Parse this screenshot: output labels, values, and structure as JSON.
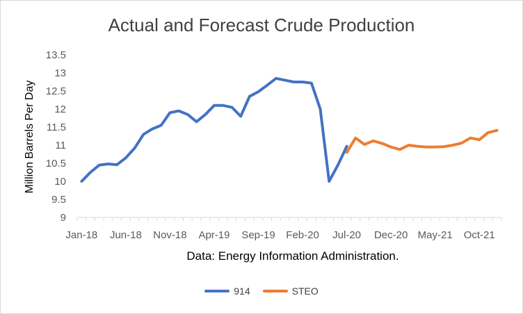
{
  "chart_data": {
    "type": "line",
    "title": "Actual and Forecast Crude Production",
    "ylabel": "Million Barrels Per Day",
    "xlabel": "Data: Energy Information Administration.",
    "ylim": [
      9,
      13.5
    ],
    "yticks": [
      "9",
      "9.5",
      "10",
      "10.5",
      "11",
      "11.5",
      "12",
      "12.5",
      "13",
      "13.5"
    ],
    "xticks": [
      "Jan-18",
      "Jun-18",
      "Nov-18",
      "Apr-19",
      "Sep-19",
      "Feb-20",
      "Jul-20",
      "Dec-20",
      "May-21",
      "Oct-21"
    ],
    "grid": false,
    "legend_position": "bottom",
    "series": [
      {
        "name": "914",
        "color": "#4472C4",
        "x": [
          "Jan-18",
          "Feb-18",
          "Mar-18",
          "Apr-18",
          "May-18",
          "Jun-18",
          "Jul-18",
          "Aug-18",
          "Sep-18",
          "Oct-18",
          "Nov-18",
          "Dec-18",
          "Jan-19",
          "Feb-19",
          "Mar-19",
          "Apr-19",
          "May-19",
          "Jun-19",
          "Jul-19",
          "Aug-19",
          "Sep-19",
          "Oct-19",
          "Nov-19",
          "Dec-19",
          "Jan-20",
          "Feb-20",
          "Mar-20",
          "Apr-20",
          "May-20",
          "Jun-20",
          "Jul-20"
        ],
        "values": [
          10.0,
          10.25,
          10.45,
          10.48,
          10.46,
          10.65,
          10.92,
          11.3,
          11.45,
          11.55,
          11.9,
          11.95,
          11.85,
          11.65,
          11.85,
          12.1,
          12.1,
          12.05,
          11.8,
          12.35,
          12.48,
          12.66,
          12.85,
          12.8,
          12.75,
          12.75,
          12.72,
          12.0,
          10.0,
          10.45,
          10.97
        ]
      },
      {
        "name": "STEO",
        "color": "#ED7D31",
        "x": [
          "Jul-20",
          "Aug-20",
          "Sep-20",
          "Oct-20",
          "Nov-20",
          "Dec-20",
          "Jan-21",
          "Feb-21",
          "Mar-21",
          "Apr-21",
          "May-21",
          "Jun-21",
          "Jul-21",
          "Aug-21",
          "Sep-21",
          "Oct-21",
          "Nov-21",
          "Dec-21"
        ],
        "values": [
          10.8,
          11.2,
          11.02,
          11.12,
          11.05,
          10.95,
          10.88,
          11.0,
          10.97,
          10.95,
          10.95,
          10.96,
          11.0,
          11.06,
          11.2,
          11.15,
          11.35,
          11.41
        ]
      }
    ]
  }
}
